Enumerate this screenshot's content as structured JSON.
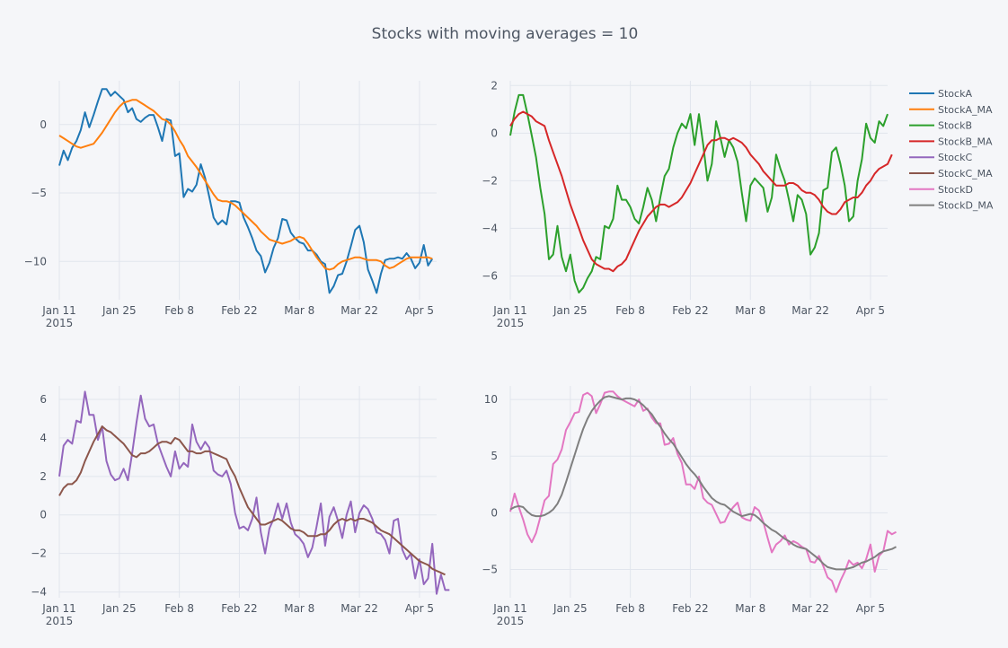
{
  "chart_data": {
    "type": "line",
    "title": "Stocks with moving averages = 10",
    "legend": {
      "placement": "top-right",
      "entries": [
        {
          "name": "StockA",
          "color": "#1f77b4"
        },
        {
          "name": "StockA_MA",
          "color": "#ff7f0e"
        },
        {
          "name": "StockB",
          "color": "#2ca02c"
        },
        {
          "name": "StockB_MA",
          "color": "#d62728"
        },
        {
          "name": "StockC",
          "color": "#9467bd"
        },
        {
          "name": "StockC_MA",
          "color": "#8c564b"
        },
        {
          "name": "StockD",
          "color": "#e377c2"
        },
        {
          "name": "StockD_MA",
          "color": "#7f7f7f"
        }
      ]
    },
    "grid": true,
    "xticks": [
      {
        "date": "2015-01-11",
        "label": "Jan 11",
        "sub": "2015"
      },
      {
        "date": "2015-01-25",
        "label": "Jan 25"
      },
      {
        "date": "2015-02-08",
        "label": "Feb 8"
      },
      {
        "date": "2015-02-22",
        "label": "Feb 22"
      },
      {
        "date": "2015-03-08",
        "label": "Mar 8"
      },
      {
        "date": "2015-03-22",
        "label": "Mar 22"
      },
      {
        "date": "2015-04-05",
        "label": "Apr 5"
      }
    ],
    "xlim": [
      "2015-01-11",
      "2015-04-09"
    ],
    "panels": [
      {
        "ylim": [
          -12.8,
          3.2
        ],
        "yticks": [
          0,
          -5,
          -10
        ],
        "series": [
          {
            "name": "StockA",
            "color": "#1f77b4",
            "x_start": "2015-01-11",
            "values": [
              -3.0,
              -1.9,
              -2.6,
              -1.7,
              -1.2,
              -0.4,
              0.9,
              -0.2,
              0.7,
              1.7,
              2.6,
              2.6,
              2.1,
              2.4,
              2.1,
              1.8,
              0.9,
              1.2,
              0.4,
              0.2,
              0.5,
              0.7,
              0.7,
              -0.2,
              -1.2,
              0.4,
              0.3,
              -2.3,
              -2.1,
              -5.3,
              -4.7,
              -4.9,
              -4.4,
              -2.9,
              -3.9,
              -5.3,
              -6.8,
              -7.3,
              -7.0,
              -7.3,
              -5.6,
              -5.6,
              -5.7,
              -6.8,
              -7.5,
              -8.3,
              -9.2,
              -9.6,
              -10.8,
              -10.1,
              -9.0,
              -8.3,
              -6.9,
              -7.0,
              -7.9,
              -8.3,
              -8.6,
              -8.7,
              -9.2,
              -9.2,
              -9.5,
              -10.0,
              -10.2,
              -12.3,
              -11.8,
              -11.0,
              -10.9,
              -10.0,
              -8.9,
              -7.7,
              -7.4,
              -8.6,
              -10.6,
              -11.4,
              -12.3,
              -10.9,
              -9.9,
              -9.8,
              -9.8,
              -9.7,
              -9.8,
              -9.4,
              -9.8,
              -10.5,
              -10.1,
              -8.8,
              -10.3,
              -9.8
            ]
          },
          {
            "name": "StockA_MA",
            "color": "#ff7f0e",
            "x_start": "2015-01-11",
            "values": [
              -0.8,
              -1.0,
              -1.2,
              -1.4,
              -1.6,
              -1.7,
              -1.6,
              -1.5,
              -1.4,
              -1.0,
              -0.6,
              -0.1,
              0.4,
              0.9,
              1.3,
              1.6,
              1.7,
              1.8,
              1.8,
              1.6,
              1.4,
              1.2,
              1.0,
              0.7,
              0.4,
              0.3,
              0.0,
              -0.5,
              -1.1,
              -1.6,
              -2.3,
              -2.7,
              -3.1,
              -3.6,
              -4.1,
              -4.6,
              -5.1,
              -5.5,
              -5.6,
              -5.6,
              -5.7,
              -5.9,
              -6.2,
              -6.5,
              -6.8,
              -7.1,
              -7.4,
              -7.8,
              -8.1,
              -8.4,
              -8.5,
              -8.6,
              -8.7,
              -8.6,
              -8.5,
              -8.3,
              -8.2,
              -8.3,
              -8.7,
              -9.2,
              -9.7,
              -10.1,
              -10.5,
              -10.6,
              -10.5,
              -10.2,
              -10.0,
              -9.9,
              -9.8,
              -9.7,
              -9.7,
              -9.8,
              -9.9,
              -9.9,
              -9.9,
              -10.0,
              -10.3,
              -10.5,
              -10.4,
              -10.2,
              -10.0,
              -9.8,
              -9.7,
              -9.7,
              -9.7,
              -9.7,
              -9.7,
              -9.8
            ]
          }
        ]
      },
      {
        "ylim": [
          -7.0,
          2.2
        ],
        "yticks": [
          2,
          0,
          -2,
          -4,
          -6
        ],
        "series": [
          {
            "name": "StockB",
            "color": "#2ca02c",
            "x_start": "2015-01-11",
            "values": [
              -0.1,
              0.9,
              1.6,
              1.6,
              0.8,
              -0.1,
              -1.0,
              -2.3,
              -3.4,
              -5.3,
              -5.1,
              -3.9,
              -5.2,
              -5.8,
              -5.1,
              -6.2,
              -6.7,
              -6.5,
              -6.1,
              -5.8,
              -5.2,
              -5.3,
              -3.9,
              -4.0,
              -3.6,
              -2.2,
              -2.8,
              -2.8,
              -3.1,
              -3.6,
              -3.8,
              -3.1,
              -2.3,
              -2.8,
              -3.7,
              -2.7,
              -1.8,
              -1.5,
              -0.6,
              0.0,
              0.4,
              0.2,
              0.8,
              -0.5,
              0.8,
              -0.5,
              -2.0,
              -1.3,
              0.5,
              -0.2,
              -1.0,
              -0.3,
              -0.6,
              -1.2,
              -2.5,
              -3.7,
              -2.2,
              -1.9,
              -2.1,
              -2.3,
              -3.3,
              -2.7,
              -0.9,
              -1.5,
              -2.0,
              -2.8,
              -3.7,
              -2.6,
              -2.8,
              -3.4,
              -5.1,
              -4.8,
              -4.2,
              -2.4,
              -2.3,
              -0.8,
              -0.6,
              -1.3,
              -2.2,
              -3.7,
              -3.5,
              -2.0,
              -1.1,
              0.4,
              -0.2,
              -0.4,
              0.5,
              0.3,
              0.8
            ]
          },
          {
            "name": "StockB_MA",
            "color": "#d62728",
            "x_start": "2015-01-11",
            "values": [
              0.3,
              0.6,
              0.8,
              0.9,
              0.8,
              0.7,
              0.5,
              0.4,
              0.3,
              -0.3,
              -0.8,
              -1.3,
              -1.8,
              -2.4,
              -3.0,
              -3.5,
              -4.0,
              -4.5,
              -4.9,
              -5.3,
              -5.5,
              -5.6,
              -5.7,
              -5.7,
              -5.8,
              -5.6,
              -5.5,
              -5.3,
              -4.9,
              -4.5,
              -4.1,
              -3.8,
              -3.5,
              -3.3,
              -3.1,
              -3.0,
              -3.0,
              -3.1,
              -3.0,
              -2.9,
              -2.7,
              -2.4,
              -2.1,
              -1.7,
              -1.3,
              -0.9,
              -0.5,
              -0.3,
              -0.3,
              -0.2,
              -0.2,
              -0.3,
              -0.2,
              -0.3,
              -0.4,
              -0.6,
              -0.9,
              -1.1,
              -1.3,
              -1.6,
              -1.8,
              -2.0,
              -2.2,
              -2.2,
              -2.2,
              -2.1,
              -2.1,
              -2.2,
              -2.4,
              -2.5,
              -2.5,
              -2.6,
              -2.8,
              -3.1,
              -3.3,
              -3.4,
              -3.4,
              -3.2,
              -2.9,
              -2.8,
              -2.7,
              -2.7,
              -2.5,
              -2.2,
              -2.0,
              -1.7,
              -1.5,
              -1.4,
              -1.3,
              -0.9
            ]
          }
        ]
      },
      {
        "ylim": [
          -4.3,
          6.7
        ],
        "yticks": [
          6,
          4,
          2,
          0,
          -2,
          -4
        ],
        "series": [
          {
            "name": "StockC",
            "color": "#9467bd",
            "x_start": "2015-01-11",
            "values": [
              2.0,
              3.6,
              3.9,
              3.7,
              4.9,
              4.8,
              6.4,
              5.2,
              5.2,
              3.9,
              4.6,
              2.8,
              2.1,
              1.8,
              1.9,
              2.4,
              1.8,
              3.2,
              4.8,
              6.2,
              5.0,
              4.6,
              4.7,
              3.7,
              3.1,
              2.5,
              2.0,
              3.3,
              2.4,
              2.7,
              2.5,
              4.7,
              3.8,
              3.4,
              3.8,
              3.5,
              2.3,
              2.1,
              2.0,
              2.3,
              1.6,
              0.1,
              -0.7,
              -0.6,
              -0.8,
              -0.2,
              0.9,
              -0.9,
              -2.0,
              -0.7,
              -0.2,
              0.6,
              -0.2,
              0.6,
              -0.4,
              -1.0,
              -1.2,
              -1.5,
              -2.2,
              -1.7,
              -0.6,
              0.6,
              -1.6,
              -0.1,
              0.4,
              -0.3,
              -1.2,
              0.0,
              0.7,
              -0.9,
              0.1,
              0.5,
              0.3,
              -0.2,
              -0.9,
              -1.0,
              -1.3,
              -2.0,
              -0.3,
              -0.2,
              -1.8,
              -2.3,
              -2.0,
              -3.3,
              -2.3,
              -3.6,
              -3.3,
              -1.5,
              -4.1,
              -3.1,
              -3.9,
              -3.9
            ]
          },
          {
            "name": "StockC_MA",
            "color": "#8c564b",
            "x_start": "2015-01-11",
            "values": [
              1.0,
              1.4,
              1.6,
              1.6,
              1.8,
              2.2,
              2.8,
              3.3,
              3.8,
              4.2,
              4.6,
              4.4,
              4.3,
              4.1,
              3.9,
              3.7,
              3.4,
              3.1,
              3.0,
              3.2,
              3.2,
              3.3,
              3.5,
              3.7,
              3.8,
              3.8,
              3.7,
              4.0,
              3.9,
              3.6,
              3.3,
              3.3,
              3.2,
              3.2,
              3.3,
              3.3,
              3.2,
              3.1,
              3.0,
              2.9,
              2.4,
              2.0,
              1.4,
              0.9,
              0.4,
              0.1,
              -0.2,
              -0.5,
              -0.5,
              -0.4,
              -0.3,
              -0.2,
              -0.3,
              -0.5,
              -0.7,
              -0.8,
              -0.8,
              -0.9,
              -1.1,
              -1.1,
              -1.1,
              -1.0,
              -1.0,
              -0.8,
              -0.5,
              -0.3,
              -0.2,
              -0.3,
              -0.2,
              -0.3,
              -0.2,
              -0.2,
              -0.3,
              -0.4,
              -0.6,
              -0.8,
              -0.9,
              -1.0,
              -1.2,
              -1.4,
              -1.6,
              -1.8,
              -2.0,
              -2.2,
              -2.4,
              -2.5,
              -2.6,
              -2.8,
              -2.9,
              -3.0,
              -3.1
            ]
          }
        ]
      },
      {
        "ylim": [
          -7.5,
          11.2
        ],
        "yticks": [
          10,
          5,
          0,
          -5
        ],
        "series": [
          {
            "name": "StockD",
            "color": "#e377c2",
            "x_start": "2015-01-11",
            "values": [
              0.1,
              1.7,
              0.5,
              -0.6,
              -1.9,
              -2.6,
              -1.8,
              -0.4,
              1.1,
              1.5,
              4.3,
              4.7,
              5.6,
              7.3,
              8.0,
              8.8,
              8.9,
              10.4,
              10.6,
              10.3,
              8.8,
              9.6,
              10.6,
              10.7,
              10.7,
              10.3,
              10.0,
              9.8,
              9.6,
              9.4,
              10.0,
              9.0,
              9.2,
              8.4,
              7.9,
              7.9,
              6.0,
              6.1,
              6.6,
              5.2,
              4.4,
              2.5,
              2.5,
              2.1,
              3.2,
              1.3,
              0.9,
              0.7,
              -0.1,
              -0.9,
              -0.8,
              0.0,
              0.5,
              0.9,
              -0.4,
              -0.6,
              -0.7,
              0.5,
              0.2,
              -0.8,
              -2.2,
              -3.5,
              -2.8,
              -2.5,
              -2.0,
              -2.8,
              -2.5,
              -2.7,
              -3.0,
              -3.2,
              -4.3,
              -4.4,
              -3.8,
              -4.7,
              -5.7,
              -6.0,
              -7.0,
              -6.0,
              -5.2,
              -4.2,
              -4.6,
              -4.4,
              -4.9,
              -4.1,
              -2.8,
              -5.2,
              -3.8,
              -3.4,
              -1.6,
              -1.9,
              -1.7
            ]
          },
          {
            "name": "StockD_MA",
            "color": "#7f7f7f",
            "x_start": "2015-01-11",
            "values": [
              0.3,
              0.5,
              0.6,
              0.5,
              0.1,
              -0.2,
              -0.3,
              -0.3,
              -0.2,
              0.0,
              0.3,
              0.8,
              1.6,
              2.7,
              3.9,
              5.1,
              6.3,
              7.4,
              8.3,
              9.0,
              9.5,
              9.9,
              10.2,
              10.3,
              10.2,
              10.1,
              10.0,
              10.1,
              10.1,
              10.0,
              9.8,
              9.5,
              9.1,
              8.7,
              8.1,
              7.6,
              7.0,
              6.5,
              6.1,
              5.5,
              4.9,
              4.3,
              3.8,
              3.4,
              2.9,
              2.3,
              1.8,
              1.3,
              1.0,
              0.8,
              0.7,
              0.4,
              0.1,
              -0.1,
              -0.3,
              -0.2,
              -0.1,
              -0.2,
              -0.5,
              -0.9,
              -1.2,
              -1.5,
              -1.7,
              -2.0,
              -2.3,
              -2.5,
              -2.8,
              -3.0,
              -3.1,
              -3.2,
              -3.5,
              -3.8,
              -4.1,
              -4.5,
              -4.8,
              -4.9,
              -5.0,
              -5.0,
              -5.0,
              -4.9,
              -4.8,
              -4.6,
              -4.4,
              -4.3,
              -4.1,
              -3.9,
              -3.6,
              -3.4,
              -3.3,
              -3.2,
              -3.0
            ]
          }
        ]
      }
    ]
  }
}
